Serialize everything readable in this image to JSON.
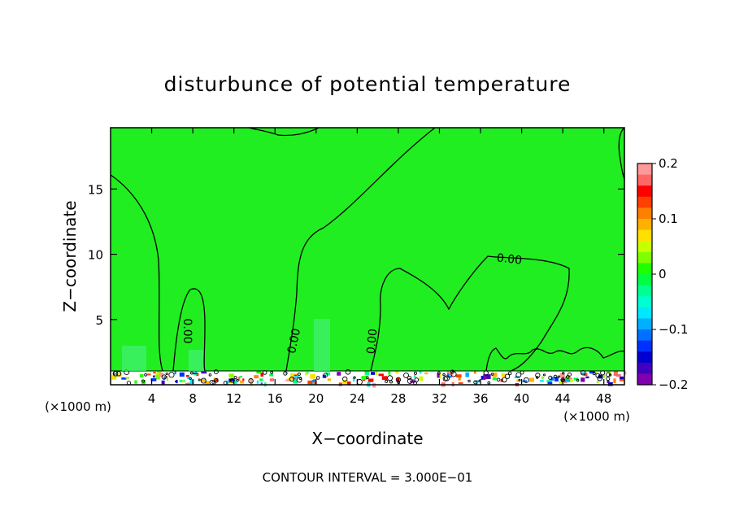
{
  "chart_data": {
    "type": "heatmap",
    "title": "disturbunce of potential temperature",
    "xlabel": "X−coordinate",
    "ylabel": "Z−coordinate",
    "x_unit": "(×1000 m)",
    "x_unit_right": "(×1000 m)",
    "xlim": [
      0,
      50
    ],
    "ylim": [
      0,
      19.7
    ],
    "x_ticks": [
      4,
      8,
      12,
      16,
      20,
      24,
      28,
      32,
      36,
      40,
      44,
      48
    ],
    "y_ticks": [
      5,
      10,
      15
    ],
    "footer": "CONTOUR INTERVAL = 3.000E−01",
    "contour_labels": [
      "0.00",
      "0.00",
      "0.00",
      "0.00"
    ],
    "colorbar": {
      "range": [
        -0.2,
        0.2
      ],
      "tick_labels": [
        "0.2",
        "0.1",
        "0",
        "−0.1",
        "−0.2"
      ],
      "tick_values": [
        0.2,
        0.1,
        0,
        -0.1,
        -0.2
      ],
      "colors": [
        "#ff9999",
        "#ff6666",
        "#ff0000",
        "#ff4000",
        "#ff8000",
        "#ffb000",
        "#ffe000",
        "#c8ff00",
        "#80ff00",
        "#20ff00",
        "#00ff40",
        "#00ff90",
        "#00ffd0",
        "#00e8ff",
        "#00b0ff",
        "#0070ff",
        "#0030ff",
        "#0000d0",
        "#4000c0",
        "#8000b0"
      ]
    },
    "background_value": 0.0,
    "background_color": "#20ee20"
  }
}
